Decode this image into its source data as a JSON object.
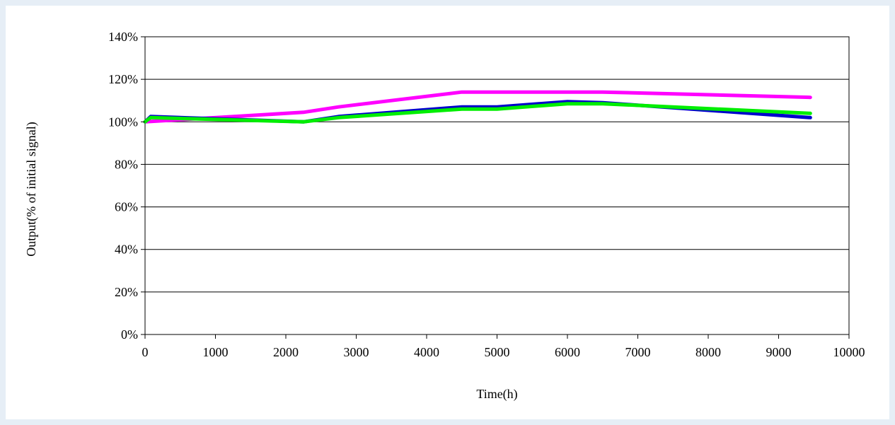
{
  "chart_data": {
    "type": "line",
    "title": "",
    "xlabel": "Time(h)",
    "ylabel": "Output(% of initial signal)",
    "xlim": [
      0,
      10000
    ],
    "ylim": [
      0,
      140
    ],
    "xticks": [
      "0",
      "1000",
      "2000",
      "3000",
      "4000",
      "5000",
      "6000",
      "7000",
      "8000",
      "9000",
      "10000"
    ],
    "yticks": [
      "0%",
      "20%",
      "40%",
      "60%",
      "80%",
      "100%",
      "120%",
      "140%"
    ],
    "grid": "horizontal",
    "legend": "none",
    "series": [
      {
        "color": "#ff00ff",
        "x": [
          0,
          2250,
          2750,
          4500,
          5000,
          6000,
          6500,
          9450
        ],
        "y": [
          100,
          104.5,
          107,
          114,
          114,
          114,
          114,
          111.5
        ]
      },
      {
        "color": "#0000cc",
        "x": [
          0,
          80,
          2250,
          2750,
          4500,
          5000,
          6000,
          6500,
          9450
        ],
        "y": [
          100,
          102.5,
          100,
          102.5,
          107,
          107,
          109.5,
          109,
          102
        ]
      },
      {
        "color": "#00ee00",
        "x": [
          0,
          80,
          2250,
          2750,
          4500,
          5000,
          6000,
          6500,
          9450
        ],
        "y": [
          100,
          102,
          100,
          102,
          106,
          106,
          108.5,
          108.5,
          104
        ]
      }
    ]
  }
}
